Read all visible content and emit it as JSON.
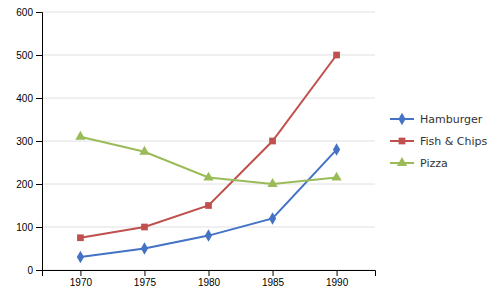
{
  "chart_data": {
    "type": "line",
    "x": [
      1970,
      1975,
      1980,
      1985,
      1990
    ],
    "series": [
      {
        "name": "Hamburger",
        "color": "#4472C4",
        "marker": "diamond",
        "values": [
          30,
          50,
          80,
          120,
          280
        ]
      },
      {
        "name": "Fish & Chips",
        "color": "#C0504D",
        "marker": "square",
        "values": [
          75,
          100,
          150,
          300,
          500
        ]
      },
      {
        "name": "Pizza",
        "color": "#9BBB59",
        "marker": "triangle",
        "values": [
          310,
          275,
          215,
          200,
          215
        ]
      }
    ],
    "xlim": [
      1967,
      1993
    ],
    "xticks": [
      1970,
      1975,
      1980,
      1985,
      1990
    ],
    "ylim": [
      0,
      600
    ],
    "yticks": [
      0,
      100,
      200,
      300,
      400,
      500,
      600
    ],
    "grid": true,
    "legend": "right"
  }
}
